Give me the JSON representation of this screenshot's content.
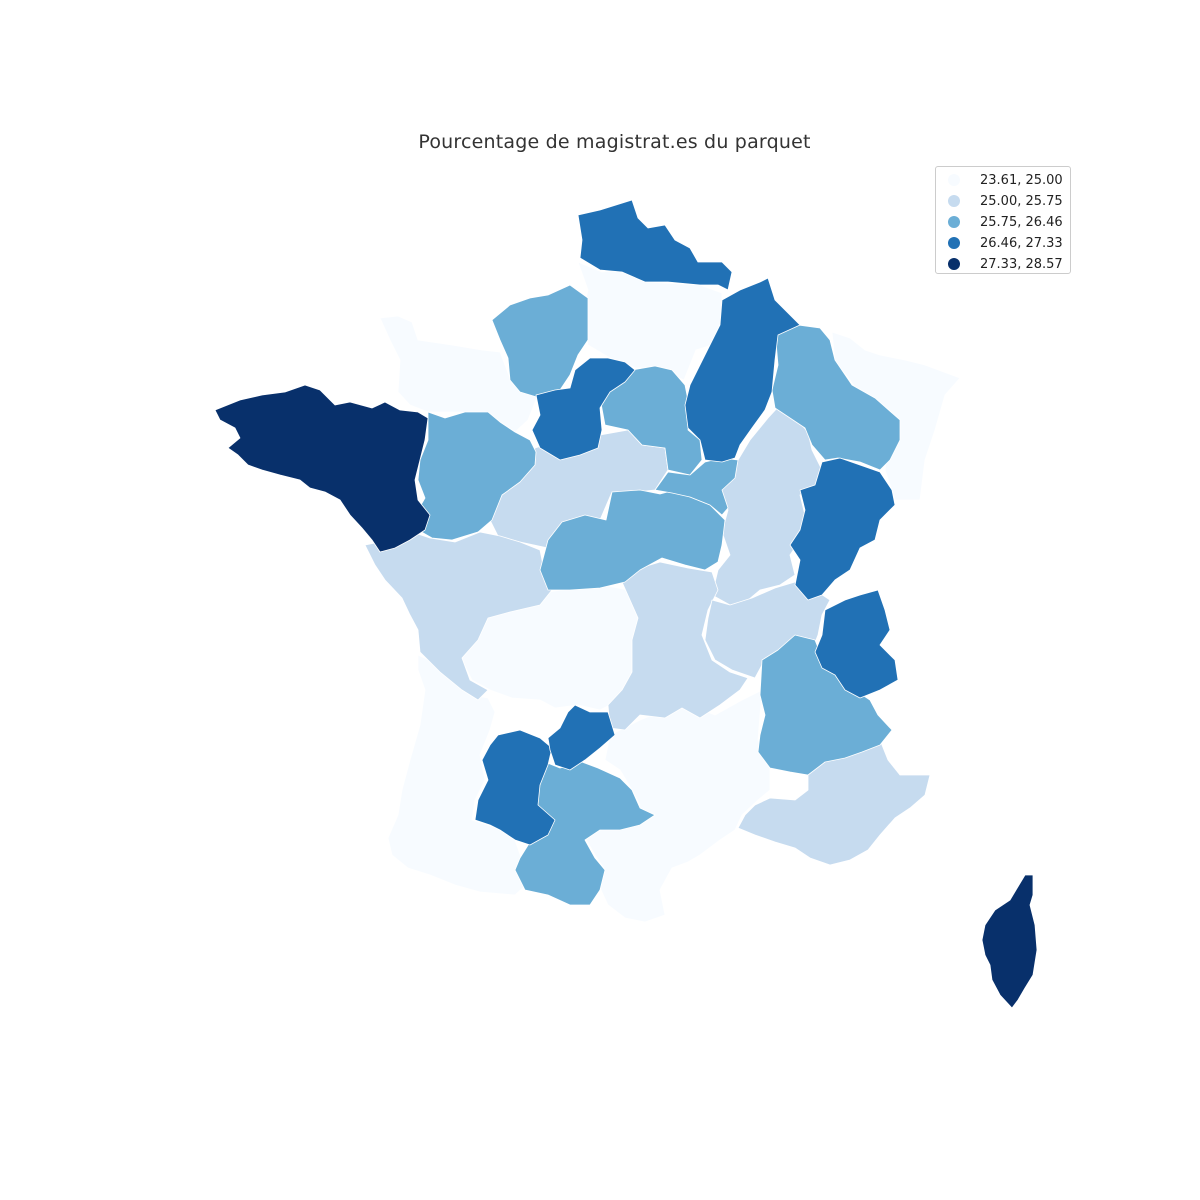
{
  "title": "Pourcentage de magistrat.es du parquet",
  "legend": {
    "items": [
      {
        "label": "23.61, 25.00",
        "color": "#f7fbff"
      },
      {
        "label": "25.00, 25.75",
        "color": "#c6dbef"
      },
      {
        "label": "25.75, 26.46",
        "color": "#6baed6"
      },
      {
        "label": "26.46, 27.33",
        "color": "#2171b5"
      },
      {
        "label": "27.33, 28.57",
        "color": "#08306b"
      }
    ]
  },
  "map_data": {
    "type": "choropleth",
    "scheme": "Blues",
    "classes": 5
  }
}
